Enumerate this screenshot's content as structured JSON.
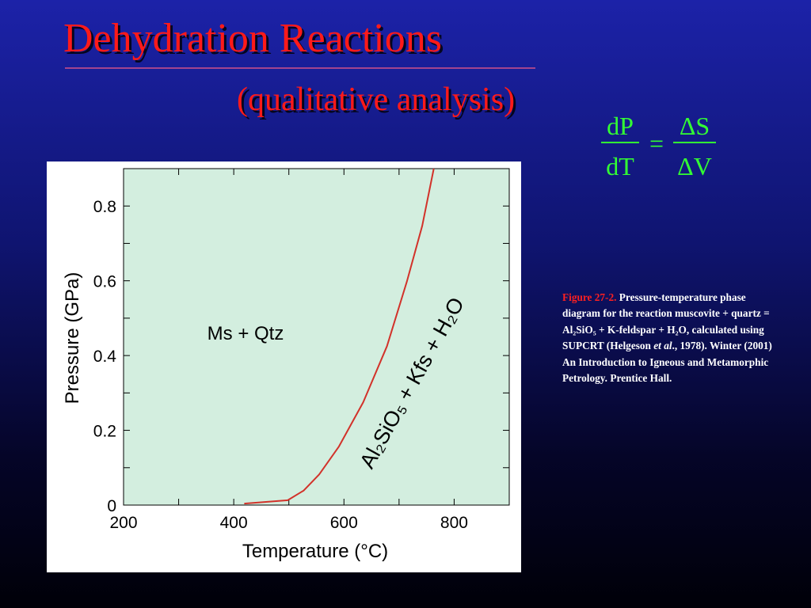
{
  "title": "Dehydration Reactions",
  "subtitle": "(qualitative analysis)",
  "equation": {
    "lhs_top": "dP",
    "lhs_bottom": "dT",
    "operator": "=",
    "rhs_top": "ΔS",
    "rhs_bottom": "ΔV"
  },
  "caption": {
    "label": "Figure 27-2.",
    "text": [
      "Pressure-temperature phase diagram for the reaction muscovite + quartz = Al₂SiO₅ + K-feldspar + H₂O, calculated using SUPCRT (Helgeson ",
      "et al",
      "., 1978). Winter (2001) An Introduction to Igneous and Metamorphic Petrology. Prentice Hall."
    ]
  },
  "chart_data": {
    "type": "line",
    "x_label": "Temperature (°C)",
    "y_label": "Pressure (GPa)",
    "annotations": [
      "Ms + Qtz",
      "Al₂SiO₅ + Kfs + H₂O"
    ],
    "x": [
      419,
      498,
      527,
      555,
      591,
      635,
      678,
      714,
      742,
      763
    ],
    "values": [
      0.004,
      0.013,
      0.039,
      0.082,
      0.157,
      0.275,
      0.425,
      0.597,
      0.747,
      0.9
    ],
    "color": "#d2322a",
    "xlim": [
      200,
      900
    ],
    "ylim": [
      0,
      0.9
    ],
    "xticks": [
      200,
      400,
      600,
      800
    ],
    "yticks": [
      0,
      0.2,
      0.4,
      0.6,
      0.8
    ],
    "xminorticks": [
      300,
      500,
      700
    ],
    "yminorticks": [
      0.1,
      0.3,
      0.5,
      0.7
    ]
  }
}
